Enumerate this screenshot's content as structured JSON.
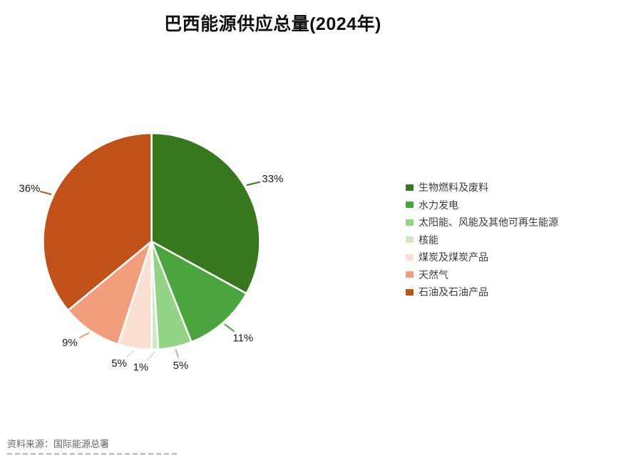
{
  "chart_data": {
    "type": "pie",
    "title": "巴西能源供应总量(2024年)",
    "start_angle_deg": 0,
    "direction": "clockwise",
    "legend_position": "right",
    "label_format": "percent-outside-with-leader-lines",
    "slices": [
      {
        "label": "生物燃料及废料",
        "value_pct": 33,
        "color": "#37781f"
      },
      {
        "label": "水力发电",
        "value_pct": 11,
        "color": "#4aa53e"
      },
      {
        "label": "太阳能、风能及其他可再生能源",
        "value_pct": 5,
        "color": "#92d385"
      },
      {
        "label": "核能",
        "value_pct": 1,
        "color": "#cfeac6"
      },
      {
        "label": "煤炭及煤炭产品",
        "value_pct": 5,
        "color": "#fadfd2"
      },
      {
        "label": "天然气",
        "value_pct": 9,
        "color": "#f09e7b"
      },
      {
        "label": "石油及石油产品",
        "value_pct": 36,
        "color": "#c05118"
      }
    ]
  },
  "footer": {
    "source": "资料来源：国际能源总署"
  }
}
